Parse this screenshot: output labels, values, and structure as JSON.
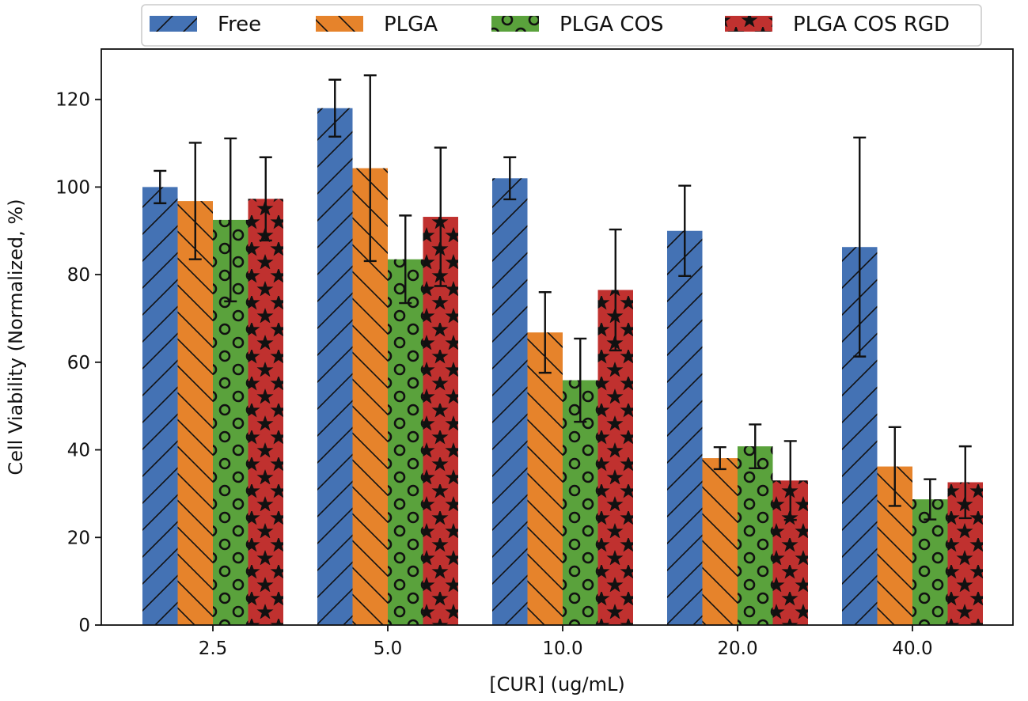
{
  "chart_data": {
    "type": "bar",
    "title": "",
    "xlabel": "[CUR] (ug/mL)",
    "ylabel": "Cell Viability (Normalized, %)",
    "categories": [
      "2.5",
      "5.0",
      "10.0",
      "20.0",
      "40.0"
    ],
    "ylim": [
      0,
      131.5
    ],
    "yticks": [
      0,
      20,
      40,
      60,
      80,
      100,
      120
    ],
    "grid": false,
    "legend_position": "top-center, above plot",
    "series": [
      {
        "name": "Free",
        "color": "#4472b4",
        "hatch": "diagonal-forward",
        "values": [
          100,
          118,
          102,
          90,
          86.3
        ],
        "errors": [
          3.7,
          6.5,
          4.8,
          10.3,
          25
        ]
      },
      {
        "name": "PLGA",
        "color": "#e6832b",
        "hatch": "diagonal-back",
        "values": [
          96.8,
          104.3,
          66.8,
          38.1,
          36.2
        ],
        "errors": [
          13.3,
          21.2,
          9.2,
          2.5,
          9
        ]
      },
      {
        "name": "PLGA COS",
        "color": "#5aa23c",
        "hatch": "circles",
        "values": [
          92.5,
          83.5,
          55.9,
          40.8,
          28.7
        ],
        "errors": [
          18.6,
          10,
          9.5,
          5,
          4.6
        ]
      },
      {
        "name": "PLGA COS RGD",
        "color": "#c0312f",
        "hatch": "stars",
        "values": [
          97.3,
          93.2,
          76.5,
          33,
          32.6
        ],
        "errors": [
          9.5,
          15.8,
          13.8,
          9,
          8.2
        ]
      }
    ]
  }
}
